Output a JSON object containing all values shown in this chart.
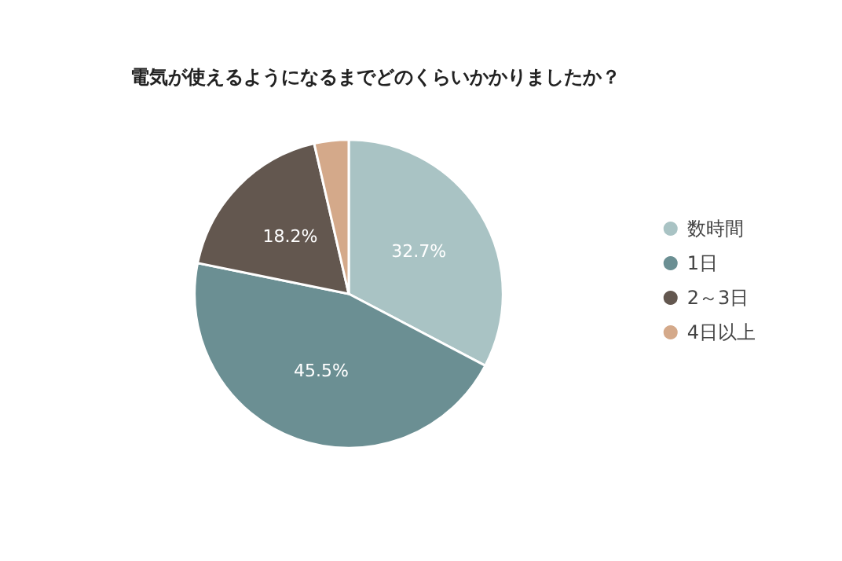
{
  "chart_data": {
    "type": "pie",
    "title": "電気が使えるようになるまでどのくらいかかりましたか？",
    "categories": [
      "数時間",
      "1日",
      "2～3日",
      "4日以上"
    ],
    "values": [
      32.7,
      45.5,
      18.2,
      3.6
    ],
    "colors": [
      "#a9c3c4",
      "#6b8f93",
      "#63574f",
      "#d4a98a"
    ],
    "value_labels": [
      "32.7%",
      "45.5%",
      "18.2%",
      null
    ],
    "legend": "right"
  }
}
